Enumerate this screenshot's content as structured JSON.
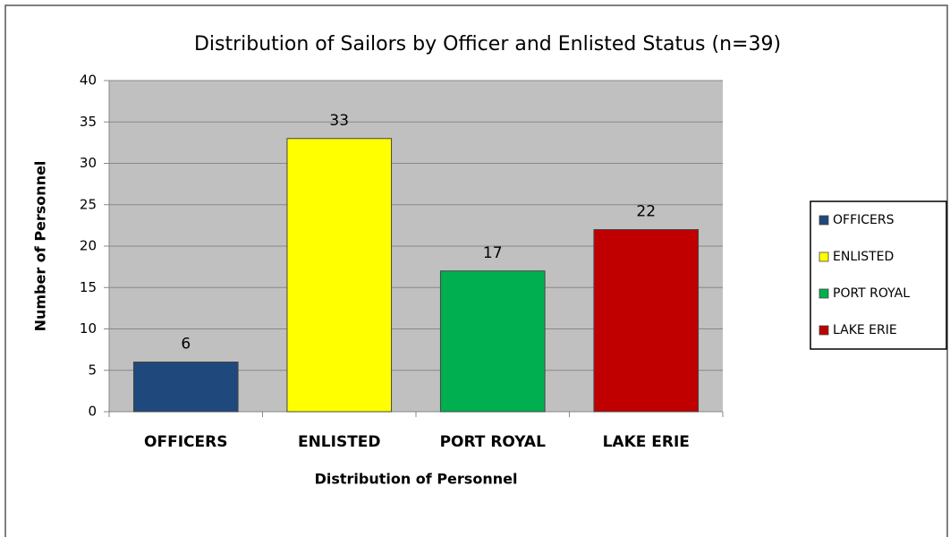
{
  "chart_data": {
    "type": "bar",
    "title": "Distribution of Sailors by Officer and Enlisted Status (n=39)",
    "x_label": "Distribution of Personnel",
    "y_label": "Number of Personnel",
    "categories": [
      "OFFICERS",
      "ENLISTED",
      "PORT ROYAL",
      "LAKE ERIE"
    ],
    "values": [
      6,
      33,
      17,
      22
    ],
    "colors": [
      "#1f497d",
      "#ffff00",
      "#00b050",
      "#c00000"
    ],
    "ylim": [
      0,
      40
    ],
    "yticks": [
      0,
      5,
      10,
      15,
      20,
      25,
      30,
      35,
      40
    ],
    "grid": true,
    "legend": "right"
  }
}
